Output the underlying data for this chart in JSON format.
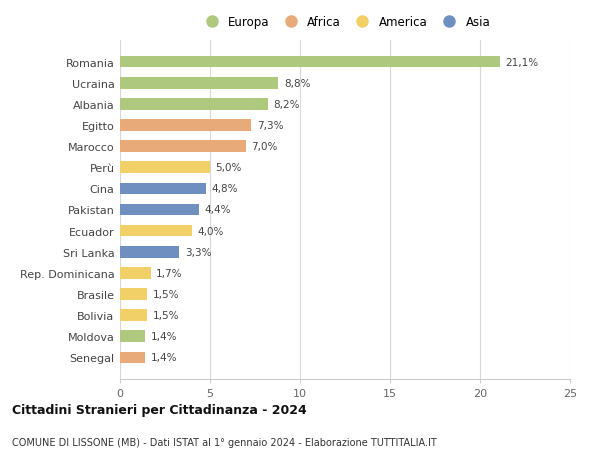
{
  "categories": [
    "Romania",
    "Ucraina",
    "Albania",
    "Egitto",
    "Marocco",
    "Perù",
    "Cina",
    "Pakistan",
    "Ecuador",
    "Sri Lanka",
    "Rep. Dominicana",
    "Brasile",
    "Bolivia",
    "Moldova",
    "Senegal"
  ],
  "values": [
    21.1,
    8.8,
    8.2,
    7.3,
    7.0,
    5.0,
    4.8,
    4.4,
    4.0,
    3.3,
    1.7,
    1.5,
    1.5,
    1.4,
    1.4
  ],
  "labels": [
    "21,1%",
    "8,8%",
    "8,2%",
    "7,3%",
    "7,0%",
    "5,0%",
    "4,8%",
    "4,4%",
    "4,0%",
    "3,3%",
    "1,7%",
    "1,5%",
    "1,5%",
    "1,4%",
    "1,4%"
  ],
  "continents": [
    "Europa",
    "Europa",
    "Europa",
    "Africa",
    "Africa",
    "America",
    "Asia",
    "Asia",
    "America",
    "Asia",
    "America",
    "America",
    "America",
    "Europa",
    "Africa"
  ],
  "continent_colors": {
    "Europa": "#aec97e",
    "Africa": "#e8aa78",
    "America": "#f2d068",
    "Asia": "#6e8fc0"
  },
  "legend_order": [
    "Europa",
    "Africa",
    "America",
    "Asia"
  ],
  "title": "Cittadini Stranieri per Cittadinanza - 2024",
  "subtitle": "COMUNE DI LISSONE (MB) - Dati ISTAT al 1° gennaio 2024 - Elaborazione TUTTITALIA.IT",
  "xlim": [
    0,
    25
  ],
  "xticks": [
    0,
    5,
    10,
    15,
    20,
    25
  ],
  "background_color": "#ffffff",
  "bar_height": 0.55
}
